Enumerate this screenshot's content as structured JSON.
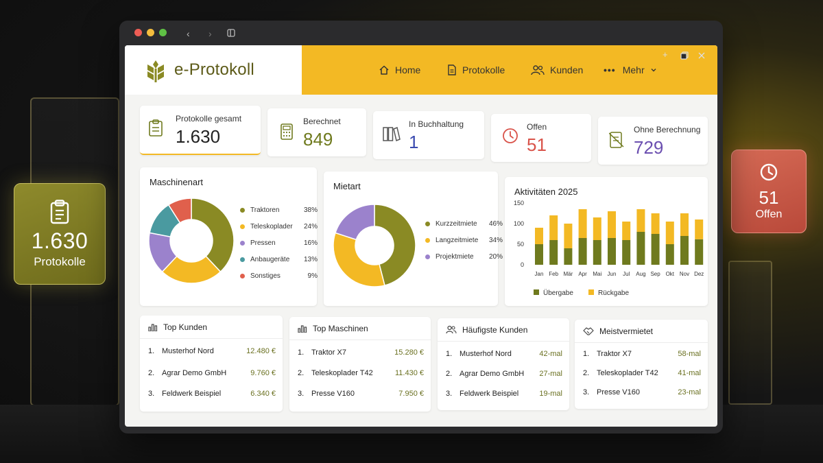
{
  "floating": {
    "left": {
      "value": "1.630",
      "label": "Protokolle"
    },
    "right": {
      "value": "51",
      "label": "Offen"
    }
  },
  "app": {
    "title": "e-Protokoll"
  },
  "nav": [
    {
      "label": "Home",
      "icon": "home-icon"
    },
    {
      "label": "Protokolle",
      "icon": "document-icon"
    },
    {
      "label": "Kunden",
      "icon": "users-icon"
    },
    {
      "label": "Mehr",
      "icon": "more-icon"
    }
  ],
  "stats": [
    {
      "title": "Protokolle gesamt",
      "value": "1.630",
      "color": "#222222",
      "icon": "clipboard-icon"
    },
    {
      "title": "Berechnet",
      "value": "849",
      "color": "#6f7a1e",
      "icon": "calculator-icon"
    },
    {
      "title": "In Buchhaltung",
      "value": "1",
      "color": "#3b4bb0",
      "icon": "binders-icon"
    },
    {
      "title": "Offen",
      "value": "51",
      "color": "#d9534a",
      "icon": "clock-icon"
    },
    {
      "title": "Ohne Berechnung",
      "value": "729",
      "color": "#6b4fb0",
      "icon": "no-calc-icon"
    }
  ],
  "colors": {
    "olive": "#8a8a24",
    "yellow": "#f3b924",
    "purple": "#9b82cc",
    "teal": "#4a9aa0",
    "red": "#e0604c"
  },
  "chart_data": [
    {
      "type": "pie",
      "title": "Maschinenart",
      "categories": [
        "Traktoren",
        "Teleskoplader",
        "Pressen",
        "Anbaugeräte",
        "Sonstiges"
      ],
      "values": [
        38,
        24,
        16,
        13,
        9
      ],
      "labels": [
        "38%",
        "24%",
        "16%",
        "13%",
        "9%"
      ],
      "colors": [
        "#8a8a24",
        "#f3b924",
        "#9b82cc",
        "#4a9aa0",
        "#e0604c"
      ]
    },
    {
      "type": "pie",
      "title": "Mietart",
      "categories": [
        "Kurzzeitmiete",
        "Langzeitmiete",
        "Projektmiete"
      ],
      "values": [
        46,
        34,
        20
      ],
      "labels": [
        "46%",
        "34%",
        "20%"
      ],
      "colors": [
        "#8a8a24",
        "#f3b924",
        "#9b82cc"
      ]
    },
    {
      "type": "bar",
      "stacked": true,
      "title": "Aktivitäten 2025",
      "categories": [
        "Jan",
        "Feb",
        "Mär",
        "Apr",
        "Mai",
        "Jun",
        "Jul",
        "Aug",
        "Sep",
        "Okt",
        "Nov",
        "Dez"
      ],
      "series": [
        {
          "name": "Übergabe",
          "values": [
            50,
            60,
            40,
            65,
            60,
            65,
            60,
            80,
            75,
            50,
            70,
            62
          ],
          "color": "#6f7a1e"
        },
        {
          "name": "Rückgabe",
          "values": [
            40,
            60,
            60,
            70,
            55,
            65,
            45,
            55,
            50,
            55,
            55,
            48
          ],
          "color": "#f3b924"
        }
      ],
      "yticks": [
        "150",
        "100",
        "50",
        "0"
      ],
      "ylim": [
        0,
        150
      ]
    }
  ],
  "lists": [
    {
      "title": "Top Kunden",
      "icon": "bar-chart-icon",
      "rows": [
        {
          "idx": "1.",
          "name": "Musterhof Nord",
          "value": "12.480 €"
        },
        {
          "idx": "2.",
          "name": "Agrar Demo GmbH",
          "value": "9.760 €"
        },
        {
          "idx": "3.",
          "name": "Feldwerk Beispiel",
          "value": "6.340 €"
        }
      ]
    },
    {
      "title": "Top Maschinen",
      "icon": "bar-chart-icon",
      "rows": [
        {
          "idx": "1.",
          "name": "Traktor X7",
          "value": "15.280 €"
        },
        {
          "idx": "2.",
          "name": "Teleskoplader T42",
          "value": "11.430 €"
        },
        {
          "idx": "3.",
          "name": "Presse V160",
          "value": "7.950 €"
        }
      ]
    },
    {
      "title": "Häufigste Kunden",
      "icon": "users-icon",
      "rows": [
        {
          "idx": "1.",
          "name": "Musterhof Nord",
          "value": "42-mal"
        },
        {
          "idx": "2.",
          "name": "Agrar Demo GmbH",
          "value": "27-mal"
        },
        {
          "idx": "3.",
          "name": "Feldwerk Beispiel",
          "value": "19-mal"
        }
      ]
    },
    {
      "title": "Meistvermietet",
      "icon": "handshake-icon",
      "rows": [
        {
          "idx": "1.",
          "name": "Traktor X7",
          "value": "58-mal"
        },
        {
          "idx": "2.",
          "name": "Teleskoplader T42",
          "value": "41-mal"
        },
        {
          "idx": "3.",
          "name": "Presse V160",
          "value": "23-mal"
        }
      ]
    }
  ]
}
